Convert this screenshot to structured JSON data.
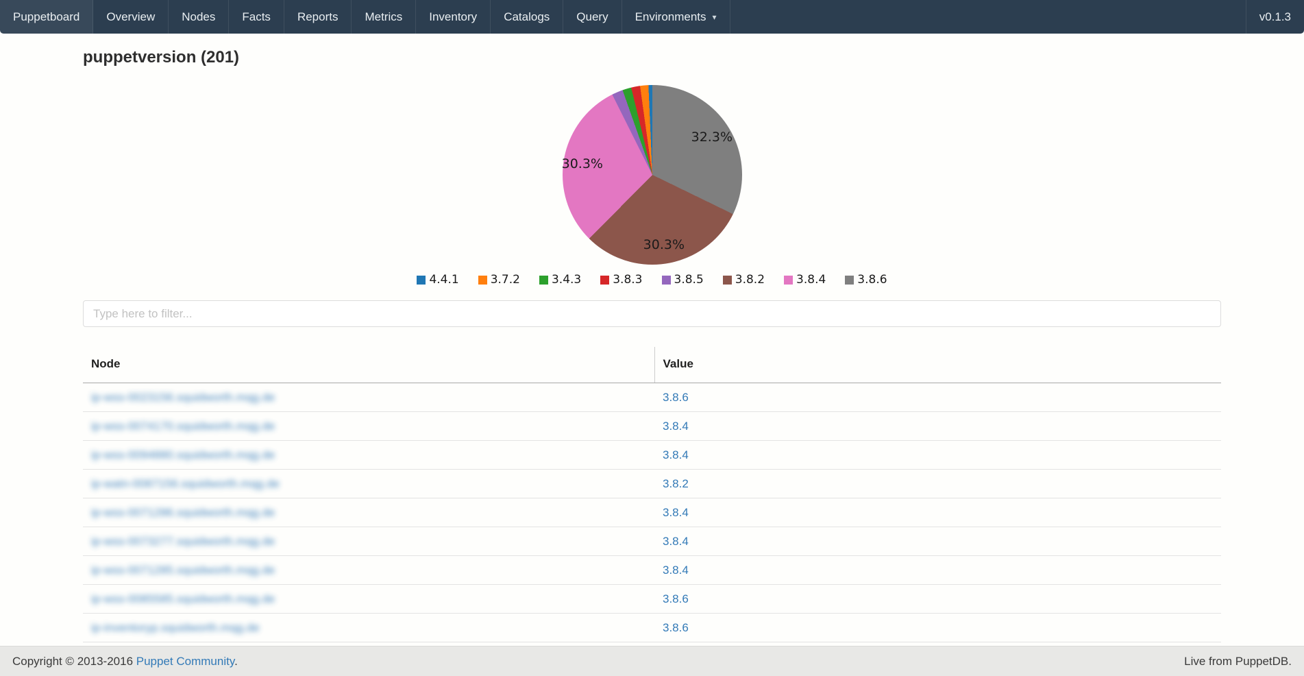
{
  "navbar": {
    "items": [
      {
        "label": "Puppetboard",
        "id": "puppetboard"
      },
      {
        "label": "Overview",
        "id": "overview"
      },
      {
        "label": "Nodes",
        "id": "nodes"
      },
      {
        "label": "Facts",
        "id": "facts"
      },
      {
        "label": "Reports",
        "id": "reports"
      },
      {
        "label": "Metrics",
        "id": "metrics"
      },
      {
        "label": "Inventory",
        "id": "inventory"
      },
      {
        "label": "Catalogs",
        "id": "catalogs"
      },
      {
        "label": "Query",
        "id": "query"
      }
    ],
    "dropdown": {
      "label": "Environments",
      "caret_icon": "chevron-down"
    },
    "version": "v0.1.3",
    "bg_color": "#2c3e50"
  },
  "page": {
    "title": "puppetversion (201)"
  },
  "chart_data": {
    "type": "pie",
    "title": "puppetversion (201)",
    "legend_position": "bottom",
    "slices_clockwise_from_top": [
      {
        "label": "3.8.6",
        "color": "#7f7f7f",
        "pct": 32.3,
        "pct_label": "32.3%"
      },
      {
        "label": "3.8.2",
        "color": "#8c564b",
        "pct": 30.3,
        "pct_label": "30.3%"
      },
      {
        "label": "3.8.4",
        "color": "#e377c2",
        "pct": 30.3,
        "pct_label": "30.3%"
      },
      {
        "label": "3.8.5",
        "color": "#9467bd",
        "pct": 2.0,
        "pct_label": ""
      },
      {
        "label": "3.4.3",
        "color": "#2ca02c",
        "pct": 1.6,
        "pct_label": ""
      },
      {
        "label": "3.8.3",
        "color": "#d62728",
        "pct": 1.6,
        "pct_label": ""
      },
      {
        "label": "3.7.2",
        "color": "#ff7f0e",
        "pct": 1.5,
        "pct_label": ""
      },
      {
        "label": "4.4.1",
        "color": "#1f77b4",
        "pct": 0.7,
        "pct_label": ""
      }
    ],
    "legend": [
      {
        "label": "4.4.1",
        "color": "#1f77b4"
      },
      {
        "label": "3.7.2",
        "color": "#ff7f0e"
      },
      {
        "label": "3.4.3",
        "color": "#2ca02c"
      },
      {
        "label": "3.8.3",
        "color": "#d62728"
      },
      {
        "label": "3.8.5",
        "color": "#9467bd"
      },
      {
        "label": "3.8.2",
        "color": "#8c564b"
      },
      {
        "label": "3.8.4",
        "color": "#e377c2"
      },
      {
        "label": "3.8.6",
        "color": "#7f7f7f"
      }
    ]
  },
  "filter": {
    "placeholder": "Type here to filter..."
  },
  "table": {
    "columns": [
      "Node",
      "Value"
    ],
    "nodes_blurred": true,
    "rows": [
      {
        "node": "ip-wss-0023156.squidworth.mqg.de",
        "value": "3.8.6"
      },
      {
        "node": "ip-wss-0074170.squidworth.mqg.de",
        "value": "3.8.4"
      },
      {
        "node": "ip-wss-0094880.squidworth.mqg.de",
        "value": "3.8.4"
      },
      {
        "node": "ip-watn-0087156.squidworth.mqg.de",
        "value": "3.8.2"
      },
      {
        "node": "ip-wss-0071286.squidworth.mqg.de",
        "value": "3.8.4"
      },
      {
        "node": "ip-wss-0073277.squidworth.mqg.de",
        "value": "3.8.4"
      },
      {
        "node": "ip-wss-0071285.squidworth.mqg.de",
        "value": "3.8.4"
      },
      {
        "node": "ip-wss-0085585.squidworth.mqg.de",
        "value": "3.8.6"
      },
      {
        "node": "ip-inventoryp.squidworth.mqg.de",
        "value": "3.8.6"
      }
    ]
  },
  "footer": {
    "copyright_prefix": "Copyright © 2013-2016 ",
    "copyright_link": "Puppet Community",
    "copyright_suffix": ".",
    "right_text": "Live from PuppetDB."
  }
}
